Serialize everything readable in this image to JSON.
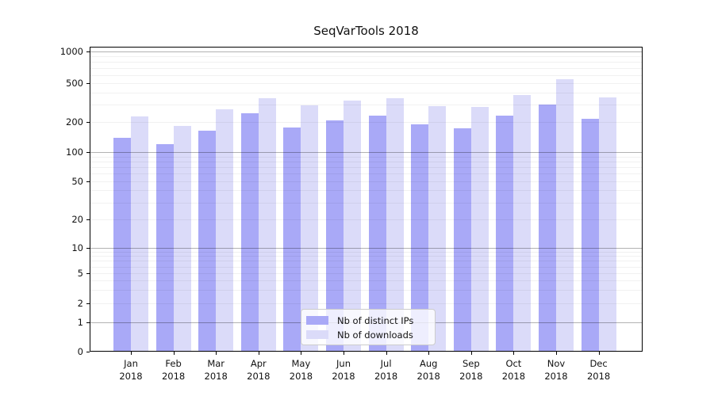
{
  "title": "SeqVarTools 2018",
  "chart_data": {
    "type": "bar",
    "title": "SeqVarTools 2018",
    "categories": [
      "Jan",
      "Feb",
      "Mar",
      "Apr",
      "May",
      "Jun",
      "Jul",
      "Aug",
      "Sep",
      "Oct",
      "Nov",
      "Dec"
    ],
    "year": "2018",
    "series": [
      {
        "name": "Nb of distinct IPs",
        "color": "#a9a9f7",
        "values": [
          138,
          119,
          162,
          242,
          173,
          205,
          229,
          188,
          171,
          230,
          301,
          212
        ]
      },
      {
        "name": "Nb of downloads",
        "color": "#dbdbf9",
        "values": [
          224,
          180,
          266,
          348,
          292,
          330,
          345,
          289,
          284,
          376,
          540,
          353
        ]
      }
    ],
    "y_axis": {
      "scale": "log-like",
      "ticks": [
        0,
        1,
        2,
        5,
        10,
        20,
        50,
        100,
        200,
        500,
        1000
      ],
      "range": [
        0,
        1000
      ]
    },
    "x_axis": {
      "tick_label_format": "month newline year"
    },
    "legend": {
      "position": "bottom-center",
      "entries": [
        "Nb of distinct IPs",
        "Nb of downloads"
      ]
    },
    "grid": {
      "minor": true,
      "major_at": [
        1,
        10,
        100,
        1000
      ]
    },
    "colors": {
      "bar_distinct_ips": "#a9a9f7",
      "bar_downloads": "#dbdbf9",
      "axis": "#000000",
      "background": "#ffffff"
    }
  }
}
